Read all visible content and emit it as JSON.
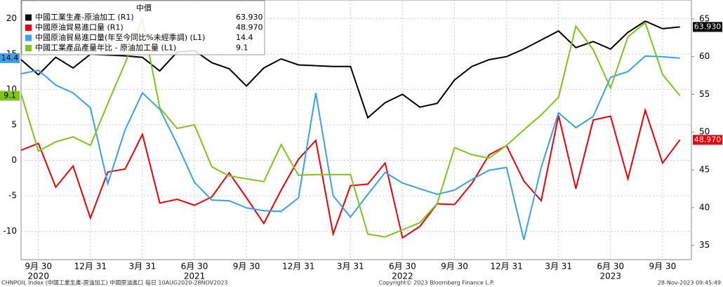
{
  "chart_data": {
    "type": "line",
    "legend_title": "中價",
    "categories": [
      null,
      "9月 30",
      null,
      null,
      "12月 31",
      null,
      null,
      "3月 31",
      null,
      null,
      "6月 30",
      null,
      null,
      "9月 30",
      null,
      null,
      "12月 31",
      null,
      null,
      "3月 31",
      null,
      null,
      "6月 30",
      null,
      null,
      "9月 30",
      null,
      null,
      "12月 31",
      null,
      null,
      "3月 31",
      null,
      null,
      "6月 30",
      null,
      null,
      "9月 30",
      null
    ],
    "year_labels": [
      {
        "label": "2020",
        "at": 1
      },
      {
        "label": "2021",
        "at": 10
      },
      {
        "label": "2022",
        "at": 22
      },
      {
        "label": "2023",
        "at": 34
      }
    ],
    "ylim": [
      -14,
      22.6
    ],
    "yticks": [
      -10,
      -5,
      0,
      5,
      10,
      15,
      20
    ],
    "y2lim": [
      33.1,
      67.5
    ],
    "y2ticks": [
      35,
      40,
      45,
      50,
      55,
      60,
      65
    ],
    "grid": true,
    "series": [
      {
        "name": "中國工業生產-原油加工 (R1)",
        "color": "#000000",
        "axis": "y2",
        "last_label": "63.930",
        "values": [
          59.6,
          57.6,
          59.9,
          58.5,
          60.3,
          60.2,
          60.1,
          59.9,
          58.1,
          60.6,
          60.8,
          59.2,
          58.4,
          56.1,
          58.5,
          59.7,
          58.9,
          58.8,
          58.7,
          58.7,
          51.9,
          53.9,
          55.0,
          53.3,
          53.8,
          56.9,
          58.7,
          59.6,
          60.0,
          61.0,
          62.2,
          63.4,
          61.2,
          62.0,
          61.0,
          63.2,
          64.7,
          63.7,
          63.93
        ]
      },
      {
        "name": "中國原油貿易進口量 (R1)",
        "color": "#e8000b",
        "axis": "y2",
        "last_label": "48.970",
        "values": [
          47.6,
          48.5,
          42.7,
          45.5,
          38.6,
          44.7,
          45.1,
          49.7,
          40.6,
          41.1,
          40.3,
          41.4,
          44.6,
          41.3,
          37.9,
          42.3,
          46.4,
          48.9,
          36.5,
          42.9,
          43.1,
          45.9,
          36.0,
          37.5,
          40.5,
          40.4,
          43.2,
          47.0,
          48.2,
          43.5,
          40.9,
          52.2,
          42.5,
          51.6,
          52.1,
          43.8,
          52.9,
          45.9,
          48.97
        ]
      },
      {
        "name": "中國原油貿易進口量(年至今同比%未經季調) (L1)",
        "color": "#3d9fe8",
        "last_label": "14.4",
        "values": [
          12.2,
          12.7,
          10.6,
          9.5,
          7.4,
          -3.3,
          4.3,
          9.5,
          7.2,
          2.3,
          -3.1,
          -5.6,
          -5.7,
          -6.7,
          -7.1,
          -7.2,
          -5.3,
          9.5,
          -5.0,
          -8.0,
          -4.8,
          -1.7,
          -3.2,
          -4.0,
          -4.8,
          -4.2,
          -2.7,
          -1.4,
          -1.0,
          -11.2,
          -1.0,
          6.7,
          4.6,
          6.2,
          11.7,
          12.5,
          14.7,
          14.6,
          14.4
        ]
      },
      {
        "name": "中國工業產品產量年比 - 原油加工量 (L1)",
        "color": "#7ec41f",
        "last_label": "9.1",
        "values": [
          9.4,
          1.3,
          2.6,
          3.3,
          2.1,
          8.0,
          13.7,
          19.9,
          7.4,
          4.5,
          5.0,
          -0.9,
          -2.2,
          -2.6,
          -3.0,
          2.2,
          -2.1,
          -2.0,
          -2.0,
          -2.0,
          -10.4,
          -10.8,
          -9.8,
          -8.8,
          -6.1,
          1.8,
          0.8,
          0.3,
          2.1,
          4.3,
          6.4,
          8.9,
          18.9,
          15.6,
          10.2,
          17.4,
          19.4,
          12.1,
          9.1
        ]
      }
    ]
  },
  "footer": {
    "left": "CHNPOIL Index (中國工業生產-原油加工) 中國原油進口 每日 10AUG2020-28NOV2023",
    "center": "Copyright© 2023 Bloomberg Finance L.P.",
    "right": "28-Nov-2023 09:45:49"
  }
}
